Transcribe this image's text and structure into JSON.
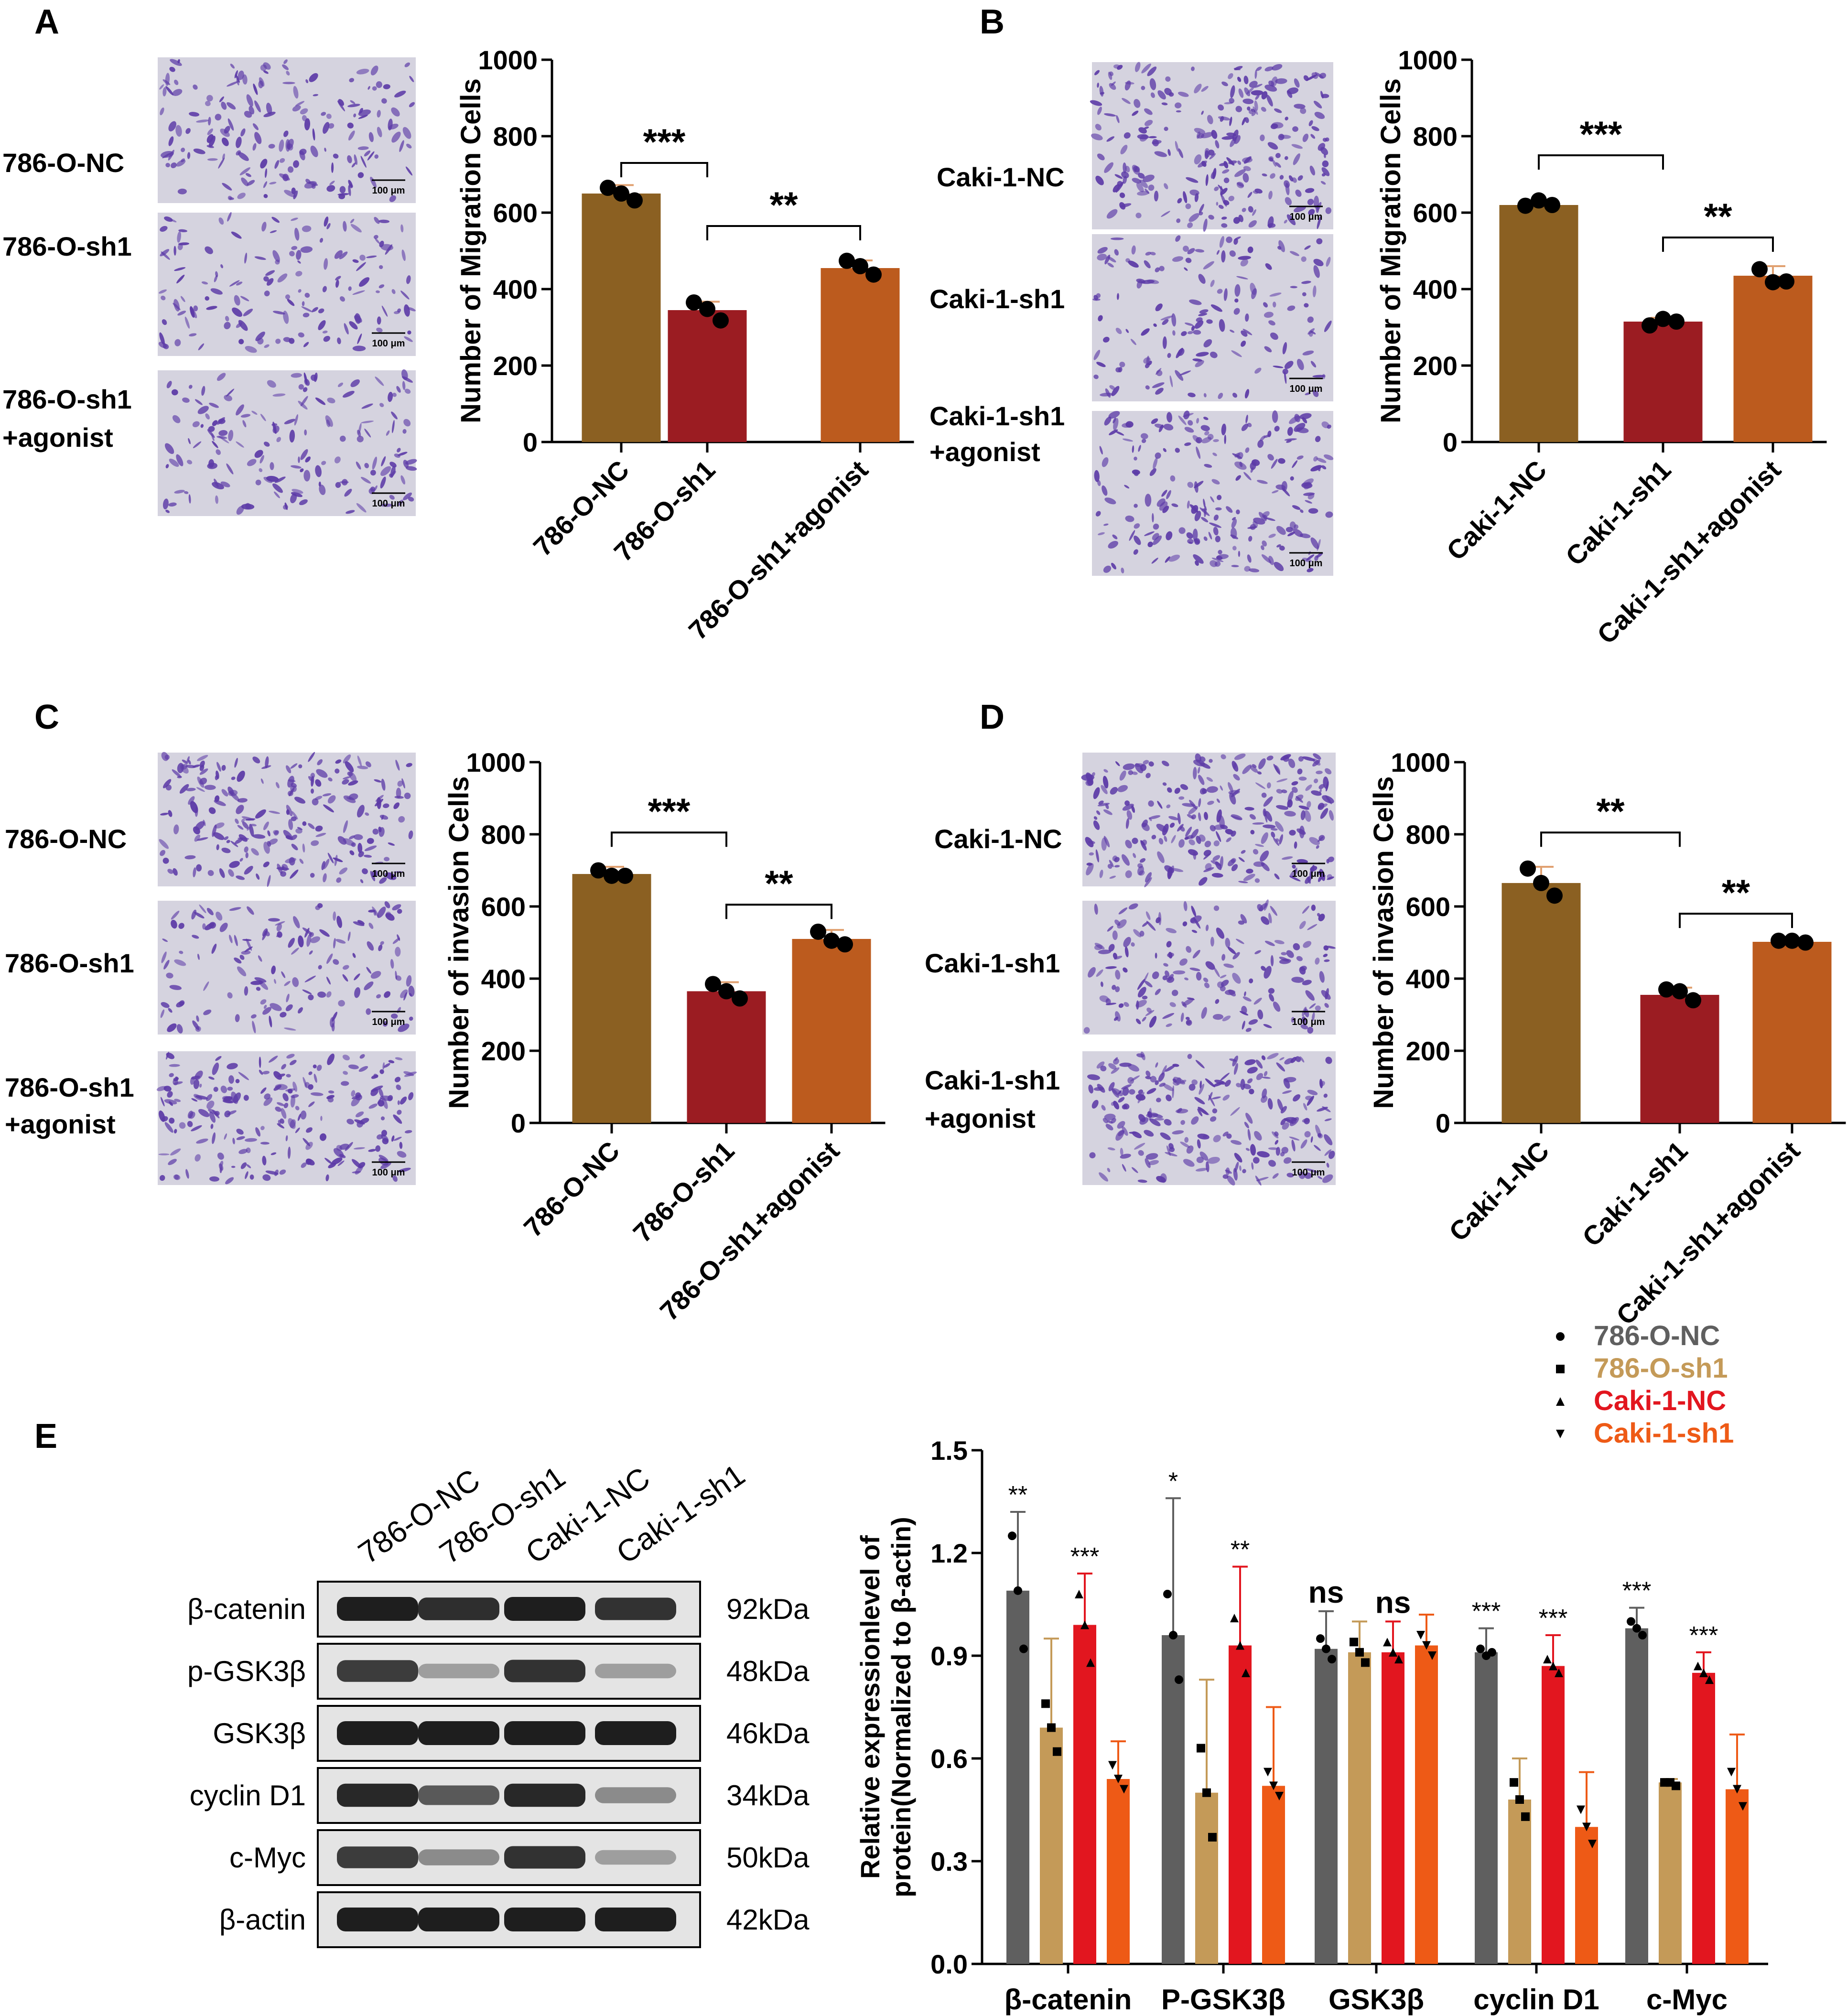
{
  "colors": {
    "nc_786": "#8B6022",
    "sh1_786": "#9B1C22",
    "agonist_786": "#BC5B1E",
    "gray": "#5f5f5f",
    "tan": "#C49A58",
    "red": "#E2161F",
    "orange": "#EE5A16",
    "micro_bg": "#d5d3df",
    "cell": "#5c3aa7",
    "blot_bg": "#e4e4e4",
    "band": "#1e1e1e"
  },
  "panels": {
    "A": {
      "letter": "A",
      "image_labels": [
        "786-O-NC",
        "786-O-sh1",
        "786-O-sh1",
        "+agonist"
      ],
      "scale_bar": "100 μm"
    },
    "B": {
      "letter": "B",
      "image_labels": [
        "Caki-1-NC",
        "Caki-1-sh1",
        "Caki-1-sh1",
        "+agonist"
      ],
      "scale_bar": "100 μm"
    },
    "C": {
      "letter": "C",
      "image_labels": [
        "786-O-NC",
        "786-O-sh1",
        "786-O-sh1",
        "+agonist"
      ],
      "scale_bar": "100 μm"
    },
    "D": {
      "letter": "D",
      "image_labels": [
        "Caki-1-NC",
        "Caki-1-sh1",
        "Caki-1-sh1",
        "+agonist"
      ],
      "scale_bar": "100 μm"
    },
    "E": {
      "letter": "E",
      "lane_labels": [
        "786-O-NC",
        "786-O-sh1",
        "Caki-1-NC",
        "Caki-1-sh1"
      ],
      "band_names": [
        "β-catenin",
        "p-GSK3β",
        "GSK3β",
        "cyclin D1",
        "c-Myc",
        "β-actin"
      ],
      "band_sizes": [
        "92kDa",
        "48kDa",
        "46kDa",
        "34kDa",
        "50kDa",
        "42kDa"
      ],
      "band_intensity": [
        [
          1.0,
          0.92,
          1.0,
          0.9
        ],
        [
          0.85,
          0.35,
          0.9,
          0.35
        ],
        [
          1.0,
          1.0,
          1.0,
          1.0
        ],
        [
          0.95,
          0.7,
          0.95,
          0.45
        ],
        [
          0.85,
          0.45,
          0.9,
          0.35
        ],
        [
          1.0,
          1.0,
          1.0,
          1.0
        ]
      ]
    }
  },
  "chart_data": [
    {
      "id": "A",
      "type": "bar",
      "categories": [
        "786-O-NC",
        "786-O-sh1",
        "786-O-sh1+agonist"
      ],
      "values": [
        650,
        345,
        455
      ],
      "errors": [
        22,
        22,
        20
      ],
      "points": [
        [
          665,
          650,
          632
        ],
        [
          365,
          348,
          318
        ],
        [
          474,
          460,
          438
        ]
      ],
      "ylabel": "Number of Migration Cells",
      "ylim": [
        0,
        1000
      ],
      "yticks": [
        0,
        200,
        400,
        600,
        800,
        1000
      ],
      "comparisons": [
        {
          "from": 0,
          "to": 1,
          "label": "***",
          "y": 730
        },
        {
          "from": 1,
          "to": 2,
          "label": "**",
          "y": 565
        }
      ]
    },
    {
      "id": "B",
      "type": "bar",
      "categories": [
        "Caki-1-NC",
        "Caki-1-sh1",
        "Caki-1-sh1+agonist"
      ],
      "values": [
        620,
        315,
        435
      ],
      "errors": [
        10,
        10,
        25
      ],
      "points": [
        [
          618,
          632,
          620
        ],
        [
          305,
          322,
          315
        ],
        [
          452,
          418,
          420
        ]
      ],
      "ylabel": "Number of Migration Cells",
      "ylim": [
        0,
        1000
      ],
      "yticks": [
        0,
        200,
        400,
        600,
        800,
        1000
      ],
      "comparisons": [
        {
          "from": 0,
          "to": 1,
          "label": "***",
          "y": 750
        },
        {
          "from": 1,
          "to": 2,
          "label": "**",
          "y": 535
        }
      ]
    },
    {
      "id": "C",
      "type": "bar",
      "categories": [
        "786-O-NC",
        "786-O-sh1",
        "786-O-sh1+agonist"
      ],
      "values": [
        690,
        365,
        510
      ],
      "errors": [
        20,
        25,
        25
      ],
      "points": [
        [
          700,
          685,
          685
        ],
        [
          385,
          365,
          345
        ],
        [
          530,
          505,
          495
        ]
      ],
      "ylabel": "Number of invasion Cells",
      "ylim": [
        0,
        1000
      ],
      "yticks": [
        0,
        200,
        400,
        600,
        800,
        1000
      ],
      "comparisons": [
        {
          "from": 0,
          "to": 1,
          "label": "***",
          "y": 805
        },
        {
          "from": 1,
          "to": 2,
          "label": "**",
          "y": 605
        }
      ]
    },
    {
      "id": "D",
      "type": "bar",
      "categories": [
        "Caki-1-NC",
        "Caki-1-sh1",
        "Caki-1-sh1+agonist"
      ],
      "values": [
        665,
        355,
        502
      ],
      "errors": [
        45,
        20,
        5
      ],
      "points": [
        [
          705,
          665,
          630
        ],
        [
          370,
          365,
          340
        ],
        [
          505,
          505,
          500
        ]
      ],
      "ylabel": "Number of invasion Cells",
      "ylim": [
        0,
        1000
      ],
      "yticks": [
        0,
        200,
        400,
        600,
        800,
        1000
      ],
      "comparisons": [
        {
          "from": 0,
          "to": 1,
          "label": "**",
          "y": 805
        },
        {
          "from": 1,
          "to": 2,
          "label": "**",
          "y": 580
        }
      ]
    },
    {
      "id": "E",
      "type": "bar",
      "categories": [
        "β-catenin",
        "P-GSK3β",
        "GSK3β",
        "cyclin D1",
        "c-Myc"
      ],
      "series": [
        {
          "name": "786-O-NC",
          "values": [
            1.09,
            0.96,
            0.92,
            0.91,
            0.98
          ],
          "errors": [
            0.23,
            0.4,
            0.11,
            0.07,
            0.06
          ],
          "points": [
            [
              1.25,
              1.09,
              0.92
            ],
            [
              1.08,
              0.96,
              0.83
            ],
            [
              0.95,
              0.92,
              0.89
            ],
            [
              0.92,
              0.9,
              0.91
            ],
            [
              1.0,
              0.98,
              0.96
            ]
          ],
          "marker": "circle",
          "color_key": "gray"
        },
        {
          "name": "786-O-sh1",
          "values": [
            0.69,
            0.5,
            0.91,
            0.48,
            0.53
          ],
          "errors": [
            0.26,
            0.33,
            0.09,
            0.12,
            0.01
          ],
          "points": [
            [
              0.76,
              0.69,
              0.62
            ],
            [
              0.63,
              0.5,
              0.37
            ],
            [
              0.94,
              0.91,
              0.88
            ],
            [
              0.53,
              0.48,
              0.43
            ],
            [
              0.53,
              0.53,
              0.52
            ]
          ],
          "marker": "square",
          "color_key": "tan"
        },
        {
          "name": "Caki-1-NC",
          "values": [
            0.99,
            0.93,
            0.91,
            0.87,
            0.85
          ],
          "errors": [
            0.15,
            0.23,
            0.09,
            0.09,
            0.06
          ],
          "points": [
            [
              1.08,
              0.99,
              0.88
            ],
            [
              1.01,
              0.93,
              0.85
            ],
            [
              0.94,
              0.91,
              0.89
            ],
            [
              0.89,
              0.87,
              0.85
            ],
            [
              0.87,
              0.85,
              0.83
            ]
          ],
          "marker": "triangle",
          "color_key": "red"
        },
        {
          "name": "Caki-1-sh1",
          "values": [
            0.54,
            0.52,
            0.93,
            0.4,
            0.51
          ],
          "errors": [
            0.11,
            0.23,
            0.09,
            0.16,
            0.16
          ],
          "points": [
            [
              0.58,
              0.54,
              0.51
            ],
            [
              0.56,
              0.52,
              0.49
            ],
            [
              0.96,
              0.93,
              0.9
            ],
            [
              0.45,
              0.4,
              0.35
            ],
            [
              0.56,
              0.51,
              0.46
            ]
          ],
          "marker": "triangle-down",
          "color_key": "orange"
        }
      ],
      "annotations": [
        {
          "category": 0,
          "series": 0,
          "label": "**"
        },
        {
          "category": 0,
          "series": 2,
          "label": "***"
        },
        {
          "category": 1,
          "series": 0,
          "label": "*"
        },
        {
          "category": 1,
          "series": 2,
          "label": "**"
        },
        {
          "category": 2,
          "series": 0,
          "label": "ns"
        },
        {
          "category": 2,
          "series": 2,
          "label": "ns"
        },
        {
          "category": 3,
          "series": 0,
          "label": "***"
        },
        {
          "category": 3,
          "series": 2,
          "label": "***"
        },
        {
          "category": 4,
          "series": 0,
          "label": "***"
        },
        {
          "category": 4,
          "series": 2,
          "label": "***"
        }
      ],
      "ylabel_line1": "Relative expressionlevel of",
      "ylabel_line2": "protein(Normalized to β-actin)",
      "ylim": [
        0,
        1.5
      ],
      "yticks": [
        "0.0",
        "0.3",
        "0.6",
        "0.9",
        "1.2",
        "1.5"
      ],
      "legend": [
        "786-O-NC",
        "786-O-sh1",
        "Caki-1-NC",
        "Caki-1-sh1"
      ],
      "legend_position": "top-right"
    }
  ]
}
